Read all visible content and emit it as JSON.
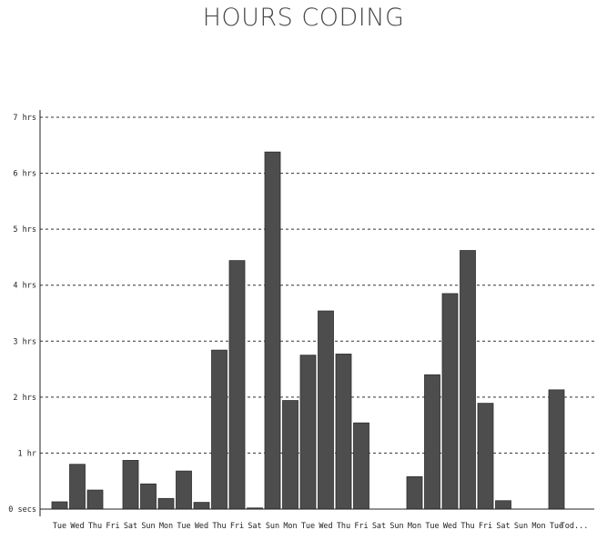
{
  "chart_data": {
    "type": "bar",
    "title": "HOURS CODING",
    "xlabel": "",
    "ylabel": "",
    "ylim": [
      0,
      7
    ],
    "grid": true,
    "yticks": [
      {
        "value": 0,
        "label": "0 secs"
      },
      {
        "value": 1,
        "label": "1 hr"
      },
      {
        "value": 2,
        "label": "2 hrs"
      },
      {
        "value": 3,
        "label": "3 hrs"
      },
      {
        "value": 4,
        "label": "4 hrs"
      },
      {
        "value": 5,
        "label": "5 hrs"
      },
      {
        "value": 6,
        "label": "6 hrs"
      },
      {
        "value": 7,
        "label": "7 hrs"
      }
    ],
    "categories": [
      "Tue",
      "Wed",
      "Thu",
      "Fri",
      "Sat",
      "Sun",
      "Mon",
      "Tue",
      "Wed",
      "Thu",
      "Fri",
      "Sat",
      "Sun",
      "Mon",
      "Tue",
      "Wed",
      "Thu",
      "Fri",
      "Sat",
      "Sun",
      "Mon",
      "Tue",
      "Wed",
      "Thu",
      "Fri",
      "Sat",
      "Sun",
      "Mon",
      "Tue",
      "Tod..."
    ],
    "values": [
      0.13,
      0.8,
      0.34,
      0,
      0.87,
      0.45,
      0.19,
      0.68,
      0.12,
      2.84,
      4.44,
      0.02,
      6.38,
      1.94,
      2.75,
      3.54,
      2.77,
      1.54,
      0,
      0,
      0.58,
      2.4,
      3.85,
      4.62,
      1.89,
      0.15,
      0,
      0,
      2.13,
      0
    ],
    "bar_color": "#4d4d4d"
  }
}
